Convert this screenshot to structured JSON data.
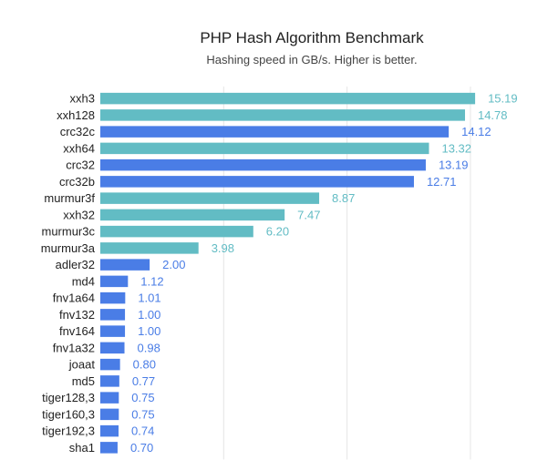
{
  "chart_data": {
    "type": "bar",
    "orientation": "horizontal",
    "title": "PHP Hash Algorithm Benchmark",
    "subtitle": "Hashing speed in GB/s. Higher is better.",
    "xlabel": "",
    "ylabel": "",
    "xlim": [
      0,
      16
    ],
    "grid": true,
    "legend": "none",
    "colors": {
      "teal": "#62bcc4",
      "blue": "#4a7de6"
    },
    "categories": [
      "xxh3",
      "xxh128",
      "crc32c",
      "xxh64",
      "crc32",
      "crc32b",
      "murmur3f",
      "xxh32",
      "murmur3c",
      "murmur3a",
      "adler32",
      "md4",
      "fnv1a64",
      "fnv132",
      "fnv164",
      "fnv1a32",
      "joaat",
      "md5",
      "tiger128,3",
      "tiger160,3",
      "tiger192,3",
      "sha1"
    ],
    "values": [
      15.19,
      14.78,
      14.12,
      13.32,
      13.19,
      12.71,
      8.87,
      7.47,
      6.2,
      3.98,
      2.0,
      1.12,
      1.01,
      1.0,
      1.0,
      0.98,
      0.8,
      0.77,
      0.75,
      0.75,
      0.74,
      0.7
    ],
    "value_labels": [
      "15.19",
      "14.78",
      "14.12",
      "13.32",
      "13.19",
      "12.71",
      "8.87",
      "7.47",
      "6.20",
      "3.98",
      "2.00",
      "1.12",
      "1.01",
      "1.00",
      "1.00",
      "0.98",
      "0.80",
      "0.77",
      "0.75",
      "0.75",
      "0.74",
      "0.70"
    ],
    "bar_colors": [
      "teal",
      "teal",
      "blue",
      "teal",
      "blue",
      "blue",
      "teal",
      "teal",
      "teal",
      "teal",
      "blue",
      "blue",
      "blue",
      "blue",
      "blue",
      "blue",
      "blue",
      "blue",
      "blue",
      "blue",
      "blue",
      "blue"
    ]
  }
}
